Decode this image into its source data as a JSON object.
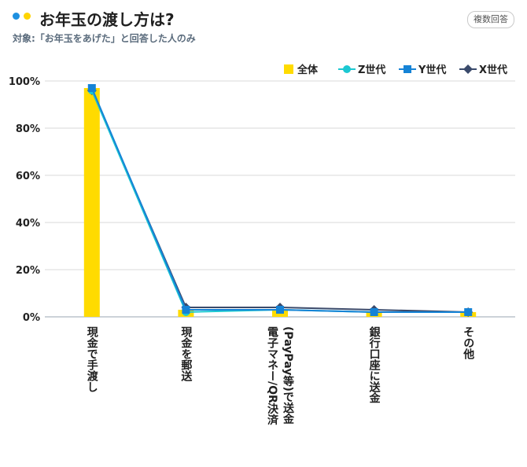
{
  "header": {
    "title": "お年玉の渡し方は?",
    "subtitle": "対象:「お年玉をあげた」と回答した人のみ",
    "badge": "複数回答"
  },
  "colors": {
    "dot_blue": "#1E90E0",
    "dot_yellow": "#FFD400",
    "bar": "#FFDB00",
    "z_line": "#1CC8D2",
    "y_line": "#1583D6",
    "x_line": "#3A4A6B",
    "grid": "#D9D9D9",
    "axis": "#9AA5B1"
  },
  "chart_data": {
    "type": "bar",
    "categories": [
      "現金で手渡し",
      "現金を郵送",
      "電子マネー/QR決済(PayPay等)で送金",
      "銀行口座に送金",
      "その他"
    ],
    "category_lines": [
      [
        "現金で手渡し"
      ],
      [
        "現金を郵送"
      ],
      [
        "電子マネー/QR決済",
        "(PayPay等)で送金"
      ],
      [
        "銀行口座に送金"
      ],
      [
        "その他"
      ]
    ],
    "yticks": [
      "0%",
      "20%",
      "40%",
      "60%",
      "80%",
      "100%"
    ],
    "ylim": [
      0,
      100
    ],
    "series": [
      {
        "name": "全体",
        "kind": "bar",
        "values": [
          97,
          3,
          3,
          2,
          2
        ]
      },
      {
        "name": "Z世代",
        "kind": "line",
        "marker": "circle",
        "values": [
          96,
          2,
          3,
          2,
          2
        ]
      },
      {
        "name": "Y世代",
        "kind": "line",
        "marker": "square",
        "values": [
          97,
          3,
          3,
          2,
          2
        ]
      },
      {
        "name": "X世代",
        "kind": "line",
        "marker": "diamond",
        "values": [
          96,
          4,
          4,
          3,
          2
        ]
      }
    ]
  }
}
